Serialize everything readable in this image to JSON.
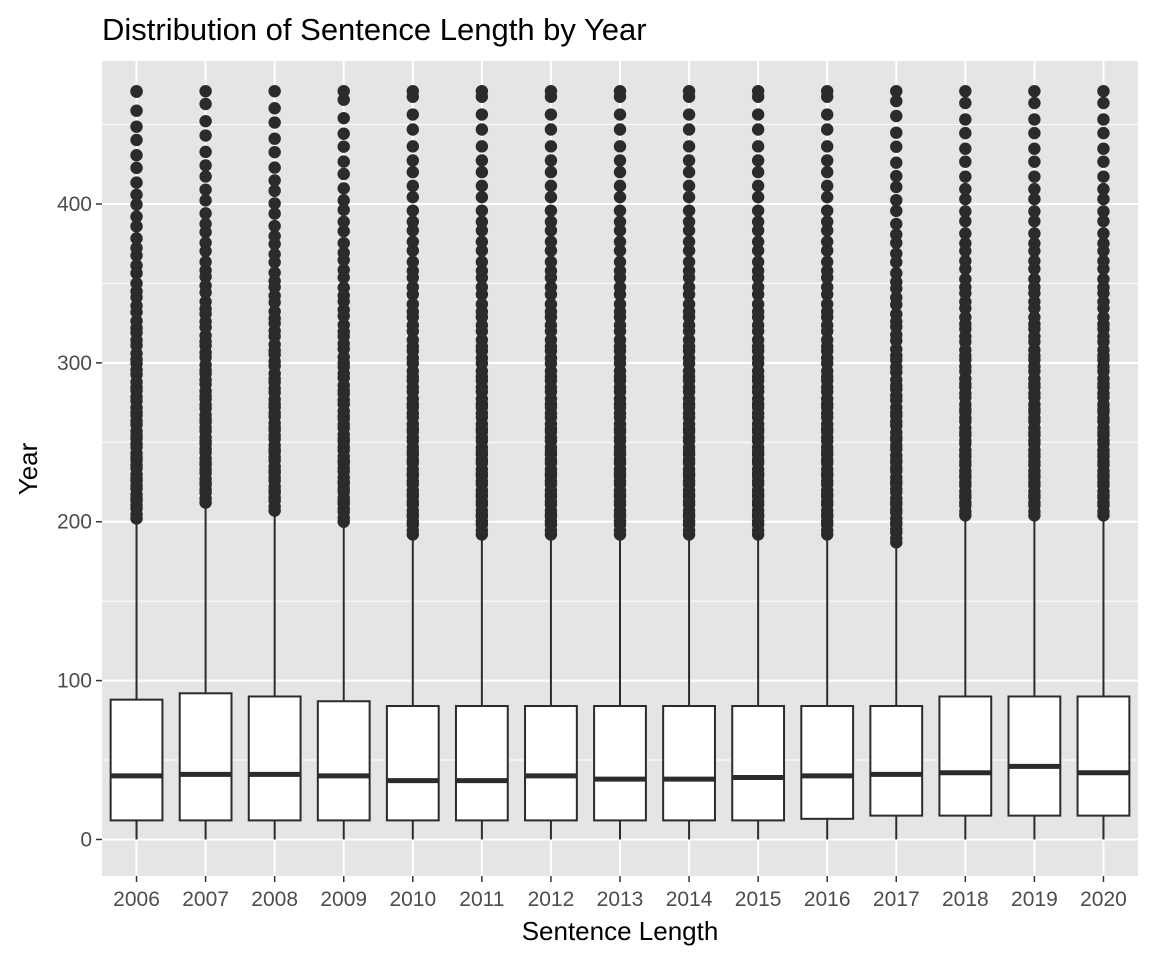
{
  "chart_data": {
    "type": "boxplot",
    "title": "Distribution of Sentence Length by Year",
    "xlabel": "Sentence Length",
    "ylabel": "Year",
    "categories": [
      "2006",
      "2007",
      "2008",
      "2009",
      "2010",
      "2011",
      "2012",
      "2013",
      "2014",
      "2015",
      "2016",
      "2017",
      "2018",
      "2019",
      "2020"
    ],
    "ylim": [
      -23,
      490
    ],
    "yticks": [
      0,
      100,
      200,
      300,
      400
    ],
    "grid": true,
    "legend": "none",
    "colors": {
      "panel": "#e5e5e5",
      "grid": "#ffffff",
      "box_fill": "#ffffff",
      "stroke": "#2b2b2b",
      "tick_text": "#4d4d4d"
    },
    "boxes": [
      {
        "year": "2006",
        "q1": 12,
        "median": 40,
        "q3": 88,
        "whisker_low": 0,
        "whisker_high": 202,
        "outlier_min": 202,
        "outlier_max": 471
      },
      {
        "year": "2007",
        "q1": 12,
        "median": 41,
        "q3": 92,
        "whisker_low": 0,
        "whisker_high": 212,
        "outlier_min": 212,
        "outlier_max": 471
      },
      {
        "year": "2008",
        "q1": 12,
        "median": 41,
        "q3": 90,
        "whisker_low": 0,
        "whisker_high": 207,
        "outlier_min": 207,
        "outlier_max": 471
      },
      {
        "year": "2009",
        "q1": 12,
        "median": 40,
        "q3": 87,
        "whisker_low": 0,
        "whisker_high": 200,
        "outlier_min": 200,
        "outlier_max": 471
      },
      {
        "year": "2010",
        "q1": 12,
        "median": 37,
        "q3": 84,
        "whisker_low": 0,
        "whisker_high": 192,
        "outlier_min": 192,
        "outlier_max": 471
      },
      {
        "year": "2011",
        "q1": 12,
        "median": 37,
        "q3": 84,
        "whisker_low": 0,
        "whisker_high": 192,
        "outlier_min": 192,
        "outlier_max": 471
      },
      {
        "year": "2012",
        "q1": 12,
        "median": 40,
        "q3": 84,
        "whisker_low": 0,
        "whisker_high": 192,
        "outlier_min": 192,
        "outlier_max": 471
      },
      {
        "year": "2013",
        "q1": 12,
        "median": 38,
        "q3": 84,
        "whisker_low": 0,
        "whisker_high": 192,
        "outlier_min": 192,
        "outlier_max": 471
      },
      {
        "year": "2014",
        "q1": 12,
        "median": 38,
        "q3": 84,
        "whisker_low": 0,
        "whisker_high": 192,
        "outlier_min": 192,
        "outlier_max": 471
      },
      {
        "year": "2015",
        "q1": 12,
        "median": 39,
        "q3": 84,
        "whisker_low": 0,
        "whisker_high": 192,
        "outlier_min": 192,
        "outlier_max": 471
      },
      {
        "year": "2016",
        "q1": 13,
        "median": 40,
        "q3": 84,
        "whisker_low": 0,
        "whisker_high": 192,
        "outlier_min": 192,
        "outlier_max": 471
      },
      {
        "year": "2017",
        "q1": 15,
        "median": 41,
        "q3": 84,
        "whisker_low": 0,
        "whisker_high": 187,
        "outlier_min": 187,
        "outlier_max": 471
      },
      {
        "year": "2018",
        "q1": 15,
        "median": 42,
        "q3": 90,
        "whisker_low": 0,
        "whisker_high": 204,
        "outlier_min": 204,
        "outlier_max": 471
      },
      {
        "year": "2019",
        "q1": 15,
        "median": 46,
        "q3": 90,
        "whisker_low": 0,
        "whisker_high": 204,
        "outlier_min": 204,
        "outlier_max": 471
      },
      {
        "year": "2020",
        "q1": 15,
        "median": 42,
        "q3": 90,
        "whisker_low": 0,
        "whisker_high": 204,
        "outlier_min": 204,
        "outlier_max": 471
      }
    ]
  }
}
